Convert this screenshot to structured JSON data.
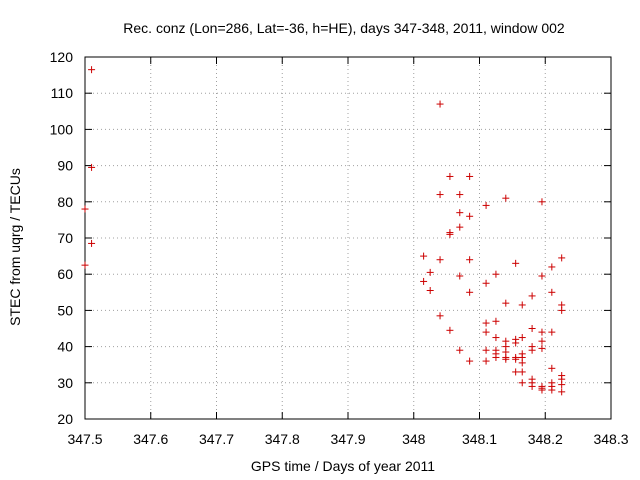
{
  "chart_data": {
    "type": "scatter",
    "title": "Rec. conz (Lon=286, Lat=-36, h=HE), days 347-348, 2011, window 002",
    "xlabel": "GPS time / Days of year 2011",
    "ylabel": "STEC from uqrg / TECUs",
    "xlim": [
      347.5,
      348.3
    ],
    "ylim": [
      20,
      120
    ],
    "xticks": [
      "347.5",
      "347.6",
      "347.7",
      "347.8",
      "347.9",
      "348",
      "348.1",
      "348.2",
      "348.3"
    ],
    "yticks": [
      "20",
      "30",
      "40",
      "50",
      "60",
      "70",
      "80",
      "90",
      "100",
      "110",
      "120"
    ],
    "grid": true,
    "marker": "+",
    "color": "#cc0000",
    "series": [
      {
        "points": [
          [
            347.5,
            78
          ],
          [
            347.5,
            62.5
          ],
          [
            347.51,
            116.5
          ],
          [
            347.51,
            89.5
          ],
          [
            347.51,
            68.5
          ],
          [
            348.015,
            65
          ],
          [
            348.015,
            58
          ],
          [
            348.025,
            60.5
          ],
          [
            348.025,
            55.5
          ],
          [
            348.04,
            107
          ],
          [
            348.04,
            82
          ],
          [
            348.04,
            64
          ],
          [
            348.04,
            48.5
          ],
          [
            348.055,
            87
          ],
          [
            348.055,
            71.5
          ],
          [
            348.055,
            71
          ],
          [
            348.055,
            44.5
          ],
          [
            348.07,
            82
          ],
          [
            348.07,
            77
          ],
          [
            348.07,
            73
          ],
          [
            348.07,
            59.5
          ],
          [
            348.07,
            39
          ],
          [
            348.085,
            87
          ],
          [
            348.085,
            76
          ],
          [
            348.085,
            64
          ],
          [
            348.085,
            55
          ],
          [
            348.085,
            36
          ],
          [
            348.11,
            79
          ],
          [
            348.11,
            57.5
          ],
          [
            348.11,
            46.5
          ],
          [
            348.11,
            44
          ],
          [
            348.11,
            39
          ],
          [
            348.11,
            36
          ],
          [
            348.125,
            60
          ],
          [
            348.125,
            47
          ],
          [
            348.125,
            42.5
          ],
          [
            348.125,
            39
          ],
          [
            348.125,
            38
          ],
          [
            348.125,
            37
          ],
          [
            348.14,
            81
          ],
          [
            348.14,
            52
          ],
          [
            348.14,
            41.5
          ],
          [
            348.14,
            40
          ],
          [
            348.14,
            38.5
          ],
          [
            348.14,
            37
          ],
          [
            348.14,
            36.5
          ],
          [
            348.155,
            63
          ],
          [
            348.155,
            42
          ],
          [
            348.155,
            41
          ],
          [
            348.155,
            37
          ],
          [
            348.155,
            36.5
          ],
          [
            348.155,
            33
          ],
          [
            348.165,
            51.5
          ],
          [
            348.165,
            42.5
          ],
          [
            348.165,
            38
          ],
          [
            348.165,
            37
          ],
          [
            348.165,
            35.5
          ],
          [
            348.165,
            33
          ],
          [
            348.165,
            30
          ],
          [
            348.18,
            54
          ],
          [
            348.18,
            45
          ],
          [
            348.18,
            40
          ],
          [
            348.18,
            39
          ],
          [
            348.18,
            31
          ],
          [
            348.18,
            30
          ],
          [
            348.18,
            29
          ],
          [
            348.195,
            80
          ],
          [
            348.195,
            59.5
          ],
          [
            348.195,
            44
          ],
          [
            348.195,
            41.5
          ],
          [
            348.195,
            39.5
          ],
          [
            348.195,
            29
          ],
          [
            348.195,
            28.5
          ],
          [
            348.195,
            28
          ],
          [
            348.21,
            62
          ],
          [
            348.21,
            55
          ],
          [
            348.21,
            44
          ],
          [
            348.21,
            34
          ],
          [
            348.21,
            30
          ],
          [
            348.21,
            29
          ],
          [
            348.21,
            28
          ],
          [
            348.225,
            64.5
          ],
          [
            348.225,
            51.5
          ],
          [
            348.225,
            50
          ],
          [
            348.225,
            32
          ],
          [
            348.225,
            31
          ],
          [
            348.225,
            29.5
          ],
          [
            348.225,
            27.5
          ]
        ]
      }
    ]
  }
}
